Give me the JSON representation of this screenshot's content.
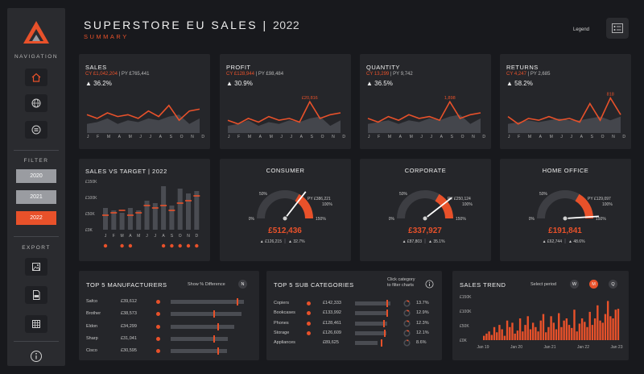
{
  "header": {
    "title": "SUPERSTORE EU SALES",
    "separator": "|",
    "year": "2022",
    "subtitle": "SUMMARY",
    "legend_label": "Legend"
  },
  "sidebar": {
    "navigation_label": "NAVIGATION",
    "nav_icons": [
      "home-icon",
      "globe-icon",
      "list-icon"
    ],
    "filter_label": "FILTER",
    "years": [
      "2020",
      "2021",
      "2022"
    ],
    "selected_year": "2022",
    "export_label": "EXPORT",
    "export_icons": [
      "image-icon",
      "csv-icon",
      "table-icon"
    ]
  },
  "colors": {
    "accent": "#e8512a",
    "card": "#25262a",
    "background": "#18191d",
    "muted": "#3d3e43"
  },
  "months": [
    "J",
    "F",
    "M",
    "A",
    "M",
    "J",
    "J",
    "A",
    "S",
    "O",
    "N",
    "D"
  ],
  "kpis": [
    {
      "title": "SALES",
      "cy": "CY £1,042,204",
      "py": "PY £765,441",
      "pct": "36.2%",
      "peak_label": "",
      "cy_series": [
        0.45,
        0.35,
        0.5,
        0.4,
        0.45,
        0.35,
        0.55,
        0.4,
        0.7,
        0.3,
        0.55,
        0.6
      ],
      "py_series": [
        0.2,
        0.25,
        0.35,
        0.2,
        0.3,
        0.25,
        0.35,
        0.3,
        0.4,
        0.45,
        0.2,
        0.35
      ]
    },
    {
      "title": "PROFIT",
      "cy": "CY £128,944",
      "py": "PY £98,484",
      "pct": "30.9%",
      "peak_label": "£20,816",
      "cy_series": [
        0.3,
        0.2,
        0.35,
        0.25,
        0.4,
        0.3,
        0.35,
        0.25,
        0.8,
        0.35,
        0.45,
        0.5
      ],
      "py_series": [
        0.15,
        0.2,
        0.3,
        0.15,
        0.25,
        0.2,
        0.3,
        0.25,
        0.35,
        0.4,
        0.15,
        0.3
      ]
    },
    {
      "title": "QUANTITY",
      "cy": "CY 13,299",
      "py": "PY 9,742",
      "pct": "36.5%",
      "peak_label": "1,898",
      "cy_series": [
        0.35,
        0.25,
        0.4,
        0.3,
        0.45,
        0.35,
        0.4,
        0.3,
        0.8,
        0.35,
        0.45,
        0.5
      ],
      "py_series": [
        0.2,
        0.25,
        0.3,
        0.2,
        0.3,
        0.25,
        0.35,
        0.3,
        0.4,
        0.45,
        0.2,
        0.35
      ]
    },
    {
      "title": "RETURNS",
      "cy": "CY 4,247",
      "py": "PY 2,685",
      "pct": "58.2%",
      "peak_label": "818",
      "cy_series": [
        0.4,
        0.2,
        0.35,
        0.3,
        0.4,
        0.3,
        0.35,
        0.25,
        0.75,
        0.3,
        0.9,
        0.45
      ],
      "py_series": [
        0.2,
        0.25,
        0.3,
        0.25,
        0.3,
        0.35,
        0.3,
        0.3,
        0.35,
        0.4,
        0.3,
        0.4
      ]
    }
  ],
  "target": {
    "title": "SALES VS TARGET | 2022",
    "y_ticks": [
      "£150K",
      "£100K",
      "£50K",
      "£0K"
    ],
    "bar_values": [
      0.45,
      0.4,
      0.35,
      0.45,
      0.4,
      0.6,
      0.55,
      0.9,
      0.5,
      0.85,
      0.75,
      0.8
    ],
    "target_values": [
      0.3,
      0.35,
      0.4,
      0.3,
      0.35,
      0.5,
      0.45,
      0.5,
      0.4,
      0.55,
      0.6,
      0.7
    ],
    "miss_dots": [
      true,
      false,
      true,
      true,
      false,
      false,
      false,
      true,
      true,
      true,
      true,
      true
    ]
  },
  "gauges": [
    {
      "title": "CONSUMER",
      "value": "£512,436",
      "py": "PY £386,221",
      "pct100": "100%",
      "pct50": "50%",
      "pct0": "0%",
      "pct150": "150%",
      "fill": 0.71,
      "footer_a": "▲ £126,215",
      "footer_b": "▲ 32.7%"
    },
    {
      "title": "CORPORATE",
      "value": "£337,927",
      "py": "PY £250,124",
      "pct100": "100%",
      "pct50": "50%",
      "pct0": "0%",
      "pct150": "150%",
      "fill": 0.79,
      "footer_a": "▲ £87,803",
      "footer_b": "▲ 35.1%"
    },
    {
      "title": "HOME OFFICE",
      "value": "£191,841",
      "py": "PY £129,097",
      "pct100": "100%",
      "pct50": "50%",
      "pct0": "0%",
      "pct150": "150%",
      "fill": 0.98,
      "footer_a": "▲ £62,744",
      "footer_b": "▲ 48.6%"
    }
  ],
  "manufacturers": {
    "title": "TOP 5 MANUFACTURERS",
    "toggle_label": "Show % Difference",
    "toggle_btn": "N",
    "rows": [
      {
        "name": "Safco",
        "value": "£39,612",
        "bar": 0.95,
        "mark": 0.85
      },
      {
        "name": "Brother",
        "value": "£38,573",
        "bar": 0.92,
        "mark": 0.55
      },
      {
        "name": "Eldon",
        "value": "£34,299",
        "bar": 0.82,
        "mark": 0.6
      },
      {
        "name": "Sharp",
        "value": "£31,041",
        "bar": 0.74,
        "mark": 0.55
      },
      {
        "name": "Cisco",
        "value": "£30,595",
        "bar": 0.73,
        "mark": 0.6
      }
    ]
  },
  "subcategories": {
    "title": "TOP 5 SUB CATEGORIES",
    "hint_line1": "Click category",
    "hint_line2": "to filter charts",
    "rows": [
      {
        "name": "Copiers",
        "value": "£142,333",
        "bar": 0.95,
        "mark": 0.85,
        "pct": "13.7%",
        "dot": true
      },
      {
        "name": "Bookcases",
        "value": "£133,992",
        "bar": 0.9,
        "mark": 0.85,
        "pct": "12.9%",
        "dot": true
      },
      {
        "name": "Phones",
        "value": "£128,461",
        "bar": 0.86,
        "mark": 0.75,
        "pct": "12.3%",
        "dot": true
      },
      {
        "name": "Storage",
        "value": "£126,609",
        "bar": 0.85,
        "mark": 0.78,
        "pct": "12.1%",
        "dot": true
      },
      {
        "name": "Appliances",
        "value": "£89,625",
        "bar": 0.6,
        "mark": 0.7,
        "pct": "8.6%",
        "dot": false
      }
    ]
  },
  "trend": {
    "title": "SALES TREND",
    "period_label": "Select period",
    "periods": [
      "W",
      "M",
      "Q"
    ],
    "selected_period": "M",
    "y_ticks": [
      "£150K",
      "£100K",
      "£50K",
      "£0K"
    ],
    "x_ticks": [
      "Jan 19",
      "Jan 20",
      "Jan 21",
      "Jan 22",
      "Jan 23"
    ],
    "bars": [
      0.1,
      0.15,
      0.2,
      0.12,
      0.3,
      0.18,
      0.35,
      0.25,
      0.1,
      0.45,
      0.3,
      0.4,
      0.15,
      0.22,
      0.5,
      0.2,
      0.35,
      0.55,
      0.25,
      0.4,
      0.3,
      0.2,
      0.45,
      0.6,
      0.18,
      0.3,
      0.55,
      0.4,
      0.25,
      0.62,
      0.3,
      0.45,
      0.5,
      0.35,
      0.28,
      0.7,
      0.2,
      0.38,
      0.5,
      0.42,
      0.3,
      0.65,
      0.35,
      0.5,
      0.8,
      0.45,
      0.4,
      0.6,
      0.9,
      0.55,
      0.5,
      0.7,
      0.72
    ]
  }
}
